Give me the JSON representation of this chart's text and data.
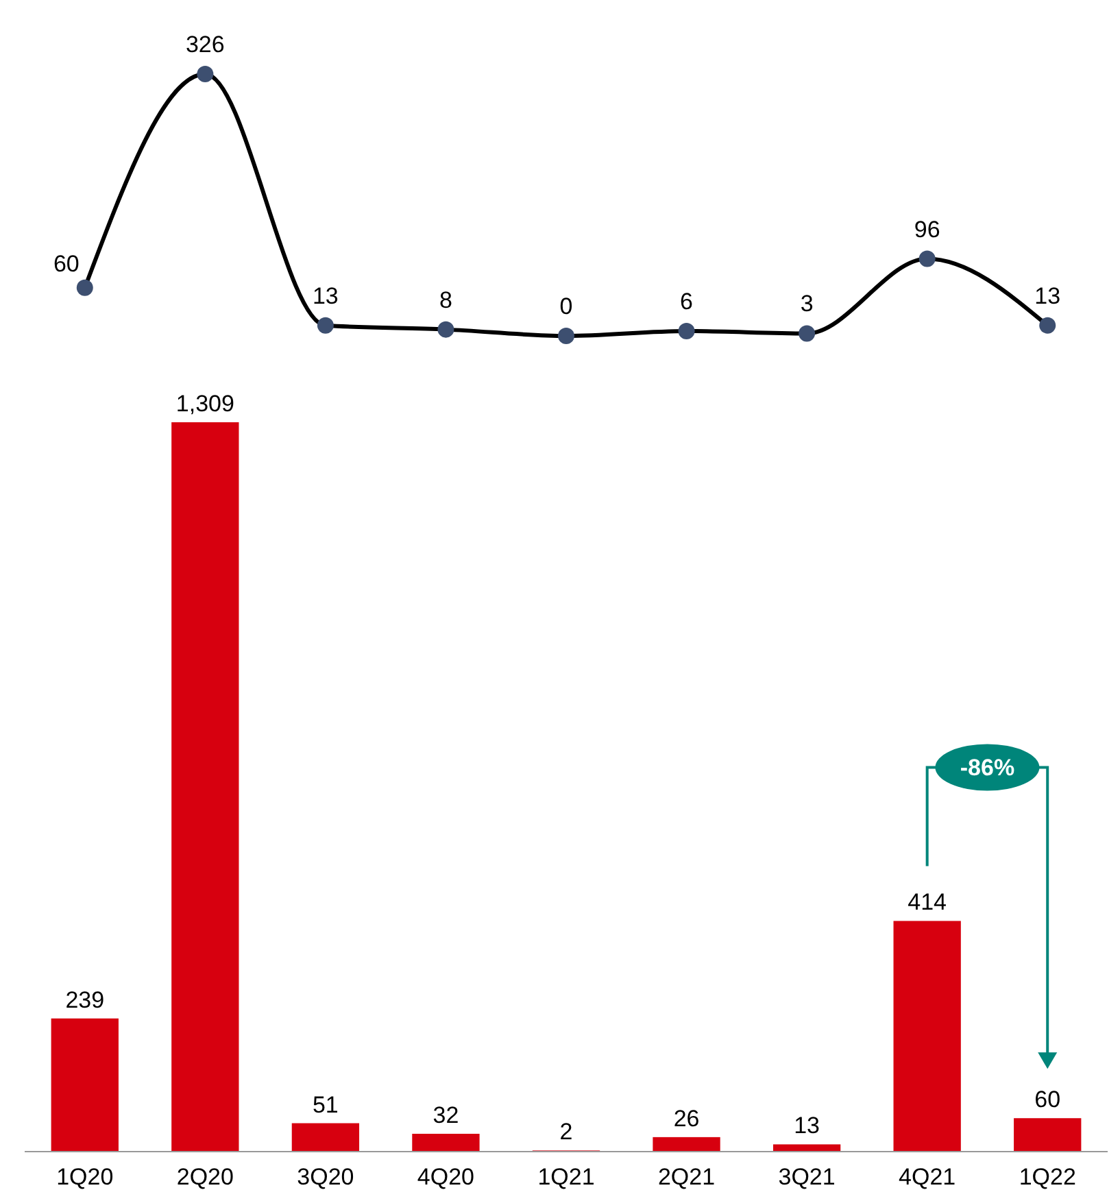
{
  "chart_data": [
    {
      "type": "line",
      "categories": [
        null,
        null,
        null,
        null,
        null,
        null,
        null,
        null,
        null
      ],
      "series": [
        {
          "color": "#000000",
          "colors": [
            "#3d4f70",
            "#3d4f70",
            "#3d4f70",
            "#3d4f70",
            "#3d4f70",
            "#3d4f70",
            "#3d4f70",
            "#3d4f70",
            "#3d4f70"
          ],
          "values": [
            60,
            326,
            13,
            8,
            0,
            6,
            3,
            96,
            13
          ]
        }
      ],
      "marker": "circle",
      "data_labels": true
    },
    {
      "type": "bar",
      "categories": [
        "1Q20",
        "2Q20",
        "3Q20",
        "4Q20",
        "1Q21",
        "2Q21",
        "3Q21",
        "4Q21",
        "1Q22"
      ],
      "series": [
        {
          "color": "#d7000f",
          "values": [
            239,
            1309,
            51,
            32,
            2,
            26,
            13,
            414,
            60
          ],
          "value_labels": [
            "239",
            "1,309",
            "51",
            "32",
            "2",
            "26",
            "13",
            "414",
            "60"
          ]
        }
      ],
      "annotations": [
        "-86%"
      ]
    }
  ]
}
